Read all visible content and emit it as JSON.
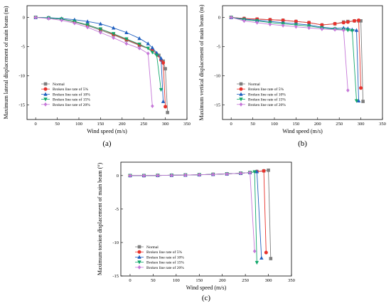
{
  "chart_data": [
    {
      "type": "line",
      "panel_label": "(a)",
      "xlabel": "Wind speed (m/s)",
      "ylabel": "Maximum lateral displacement of main beam (m)",
      "xlim": [
        -20,
        350
      ],
      "ylim": [
        -17.5,
        2
      ],
      "xticks": [
        0,
        50,
        100,
        150,
        200,
        250,
        300,
        350
      ],
      "yticks": [
        -15,
        -10,
        -5,
        0
      ],
      "legend_position": "bottom-left",
      "series": [
        {
          "name": "Normal",
          "color": "#7f7f7f",
          "marker": "square",
          "x": [
            0,
            30,
            60,
            90,
            120,
            150,
            180,
            210,
            240,
            270,
            285,
            295,
            300,
            305
          ],
          "y": [
            0,
            -0.1,
            -0.3,
            -0.8,
            -1.4,
            -2.2,
            -3.0,
            -3.9,
            -4.8,
            -5.6,
            -6.5,
            -7.5,
            -8.8,
            -16.3
          ]
        },
        {
          "name": "Broken line rate of 5%",
          "color": "#e8322c",
          "marker": "circle",
          "x": [
            0,
            30,
            60,
            90,
            120,
            150,
            180,
            210,
            240,
            270,
            280,
            290,
            295,
            300
          ],
          "y": [
            0,
            -0.1,
            -0.3,
            -0.7,
            -1.3,
            -2.0,
            -2.9,
            -3.8,
            -4.7,
            -5.6,
            -6.3,
            -7.3,
            -7.8,
            -15.3
          ]
        },
        {
          "name": "Broken line rate of 10%",
          "color": "#1f5fbf",
          "marker": "triangle-up",
          "x": [
            0,
            30,
            60,
            90,
            120,
            150,
            180,
            210,
            240,
            260,
            270,
            280,
            290,
            295
          ],
          "y": [
            0,
            -0.05,
            -0.2,
            -0.4,
            -0.7,
            -1.1,
            -1.8,
            -2.6,
            -3.6,
            -4.5,
            -5.2,
            -6.1,
            -7.0,
            -14.4
          ]
        },
        {
          "name": "Broken line rate of 15%",
          "color": "#12a86b",
          "marker": "triangle-down",
          "x": [
            0,
            30,
            60,
            90,
            120,
            150,
            180,
            210,
            240,
            260,
            270,
            280,
            290
          ],
          "y": [
            0,
            -0.1,
            -0.3,
            -0.7,
            -1.3,
            -2.0,
            -2.8,
            -3.7,
            -4.6,
            -5.3,
            -6.0,
            -6.5,
            -12.4
          ]
        },
        {
          "name": "Broken line rate of 20%",
          "color": "#c678d8",
          "marker": "diamond",
          "x": [
            0,
            30,
            60,
            90,
            120,
            150,
            180,
            210,
            240,
            260,
            270
          ],
          "y": [
            0,
            -0.2,
            -0.5,
            -1.0,
            -1.7,
            -2.6,
            -3.5,
            -4.5,
            -5.3,
            -6.2,
            -15.2
          ]
        }
      ]
    },
    {
      "type": "line",
      "panel_label": "(b)",
      "xlabel": "Wind speed (m/s)",
      "ylabel": "Maximum vertical displacement of main beam (m)",
      "xlim": [
        -20,
        350
      ],
      "ylim": [
        -17.5,
        2
      ],
      "xticks": [
        0,
        50,
        100,
        150,
        200,
        250,
        300,
        350
      ],
      "yticks": [
        -15,
        -10,
        -5,
        0
      ],
      "legend_position": "bottom-left",
      "series": [
        {
          "name": "Normal",
          "color": "#7f7f7f",
          "marker": "square",
          "x": [
            0,
            30,
            60,
            90,
            120,
            150,
            180,
            210,
            240,
            260,
            270,
            285,
            295,
            300,
            305
          ],
          "y": [
            0,
            -0.2,
            -0.3,
            -0.4,
            -0.5,
            -0.7,
            -0.9,
            -1.3,
            -1.1,
            -0.8,
            -0.7,
            -0.6,
            -0.6,
            -0.6,
            -14.4
          ]
        },
        {
          "name": "Broken line rate of 5%",
          "color": "#e8322c",
          "marker": "circle",
          "x": [
            0,
            30,
            60,
            90,
            120,
            150,
            180,
            210,
            240,
            260,
            270,
            285,
            295,
            300
          ],
          "y": [
            0,
            -0.2,
            -0.3,
            -0.4,
            -0.5,
            -0.7,
            -0.9,
            -1.3,
            -1.1,
            -0.9,
            -0.8,
            -0.6,
            -0.5,
            -12.1
          ]
        },
        {
          "name": "Broken line rate of 10%",
          "color": "#1f5fbf",
          "marker": "triangle-up",
          "x": [
            0,
            30,
            60,
            90,
            120,
            150,
            180,
            210,
            240,
            260,
            270,
            280,
            290,
            295
          ],
          "y": [
            0,
            -0.3,
            -0.5,
            -0.7,
            -0.9,
            -1.1,
            -1.3,
            -1.7,
            -1.9,
            -1.8,
            -1.9,
            -2.1,
            -2.2,
            -14.3
          ]
        },
        {
          "name": "Broken line rate of 15%",
          "color": "#12a86b",
          "marker": "triangle-down",
          "x": [
            0,
            30,
            60,
            90,
            120,
            150,
            180,
            210,
            240,
            260,
            270,
            280,
            290
          ],
          "y": [
            0,
            -0.4,
            -0.6,
            -0.9,
            -1.1,
            -1.3,
            -1.5,
            -1.8,
            -2.0,
            -2.1,
            -2.2,
            -2.3,
            -14.3
          ]
        },
        {
          "name": "Broken line rate of 20%",
          "color": "#c678d8",
          "marker": "diamond",
          "x": [
            0,
            30,
            60,
            90,
            120,
            150,
            180,
            210,
            240,
            260,
            270
          ],
          "y": [
            0,
            -0.6,
            -0.9,
            -1.2,
            -1.4,
            -1.6,
            -1.8,
            -2.0,
            -2.1,
            -2.2,
            -12.5
          ]
        }
      ]
    },
    {
      "type": "line",
      "panel_label": "(c)",
      "xlabel": "Wind speed (m/s)",
      "ylabel": "Maximum torsion displacement of main beam (°)",
      "xlim": [
        -20,
        350
      ],
      "ylim": [
        -15,
        2
      ],
      "xticks": [
        0,
        50,
        100,
        150,
        200,
        250,
        300,
        350
      ],
      "yticks": [
        -15,
        -10,
        -5,
        0
      ],
      "legend_position": "bottom-left",
      "series": [
        {
          "name": "Normal",
          "color": "#7f7f7f",
          "marker": "square",
          "x": [
            0,
            30,
            60,
            90,
            120,
            150,
            180,
            210,
            240,
            260,
            275,
            290,
            300,
            305
          ],
          "y": [
            0,
            0,
            0.02,
            0.05,
            0.08,
            0.12,
            0.18,
            0.25,
            0.35,
            0.45,
            0.6,
            0.7,
            0.8,
            -12.4
          ]
        },
        {
          "name": "Broken line rate of 5%",
          "color": "#e8322c",
          "marker": "circle",
          "x": [
            0,
            30,
            60,
            90,
            120,
            150,
            180,
            210,
            240,
            260,
            275,
            290,
            295
          ],
          "y": [
            0,
            0,
            0.02,
            0.05,
            0.08,
            0.12,
            0.18,
            0.25,
            0.35,
            0.45,
            0.6,
            0.7,
            -11.5
          ]
        },
        {
          "name": "Broken line rate of 10%",
          "color": "#1f5fbf",
          "marker": "triangle-up",
          "x": [
            0,
            30,
            60,
            90,
            120,
            150,
            180,
            210,
            240,
            260,
            275,
            285
          ],
          "y": [
            0,
            0,
            0.02,
            0.05,
            0.08,
            0.12,
            0.18,
            0.25,
            0.35,
            0.45,
            0.6,
            -12.3
          ]
        },
        {
          "name": "Broken line rate of 15%",
          "color": "#12a86b",
          "marker": "triangle-down",
          "x": [
            0,
            30,
            60,
            90,
            120,
            150,
            180,
            210,
            240,
            260,
            270,
            275
          ],
          "y": [
            0,
            0,
            0.02,
            0.05,
            0.08,
            0.12,
            0.18,
            0.25,
            0.35,
            0.45,
            0.55,
            -13.0
          ]
        },
        {
          "name": "Broken line rate of 20%",
          "color": "#c678d8",
          "marker": "diamond",
          "x": [
            0,
            30,
            60,
            90,
            120,
            150,
            180,
            210,
            240,
            260,
            270
          ],
          "y": [
            0,
            0,
            0.02,
            0.05,
            0.08,
            0.12,
            0.18,
            0.25,
            0.35,
            0.45,
            -11.3
          ]
        }
      ]
    }
  ]
}
